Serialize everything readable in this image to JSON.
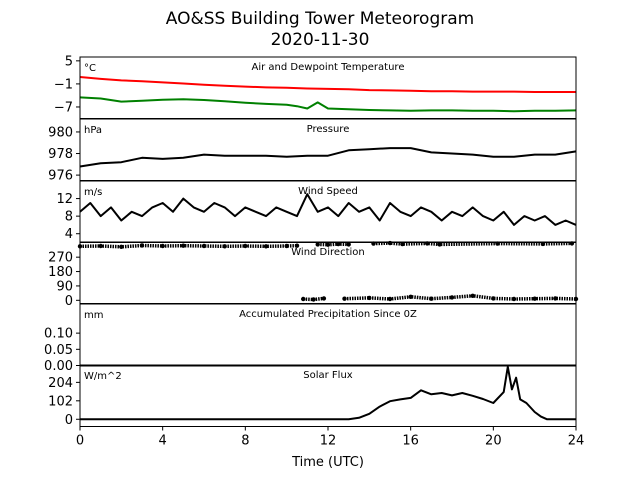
{
  "figure": {
    "title_line1": "AO&SS Building Tower Meteorogram",
    "title_line2": "2020-11-30",
    "xlabel": "Time (UTC)",
    "x_ticks": [
      "0",
      "4",
      "8",
      "12",
      "16",
      "20",
      "24"
    ],
    "xlim": [
      0,
      24
    ]
  },
  "chart_data": [
    {
      "type": "line",
      "title": "Air and Dewpoint Temperature",
      "unit": "°C",
      "ylim": [
        -10,
        6
      ],
      "y_ticks": [
        "5",
        "−1",
        "−7"
      ],
      "y_tick_values": [
        5,
        -1,
        -7
      ],
      "series": [
        {
          "color": "#ff0000",
          "x": [
            0,
            1,
            2,
            3,
            4,
            5,
            6,
            7,
            8,
            9,
            10,
            11,
            12,
            13,
            14,
            15,
            16,
            17,
            18,
            19,
            20,
            21,
            22,
            23,
            24
          ],
          "values": [
            0.8,
            0.3,
            -0.1,
            -0.3,
            -0.6,
            -0.9,
            -1.2,
            -1.5,
            -1.7,
            -1.9,
            -2.0,
            -2.2,
            -2.3,
            -2.4,
            -2.6,
            -2.7,
            -2.8,
            -2.9,
            -2.9,
            -3.0,
            -3.0,
            -3.0,
            -3.1,
            -3.1,
            -3.1
          ]
        },
        {
          "color": "#008000",
          "x": [
            0,
            1,
            2,
            3,
            4,
            5,
            6,
            7,
            8,
            9,
            10,
            10.5,
            11,
            11.5,
            12,
            13,
            14,
            15,
            16,
            17,
            18,
            19,
            20,
            21,
            22,
            23,
            24
          ],
          "values": [
            -4.5,
            -4.8,
            -5.6,
            -5.4,
            -5.1,
            -5.0,
            -5.2,
            -5.5,
            -5.9,
            -6.2,
            -6.4,
            -6.8,
            -7.4,
            -5.8,
            -7.4,
            -7.6,
            -7.8,
            -7.9,
            -8.0,
            -7.9,
            -7.9,
            -8.0,
            -8.0,
            -8.1,
            -8.0,
            -8.0,
            -7.9
          ]
        }
      ]
    },
    {
      "type": "line",
      "title": "Pressure",
      "unit": "hPa",
      "ylim": [
        975.5,
        981.2
      ],
      "y_ticks": [
        "980",
        "978",
        "976"
      ],
      "y_tick_values": [
        980,
        978,
        976
      ],
      "series": [
        {
          "color": "#000000",
          "x": [
            0,
            1,
            2,
            3,
            4,
            5,
            6,
            7,
            8,
            9,
            10,
            11,
            12,
            13,
            14,
            15,
            16,
            17,
            18,
            19,
            20,
            21,
            22,
            23,
            24
          ],
          "values": [
            976.8,
            977.1,
            977.2,
            977.6,
            977.5,
            977.6,
            977.9,
            977.8,
            977.8,
            977.8,
            977.7,
            977.8,
            977.8,
            978.3,
            978.4,
            978.5,
            978.5,
            978.1,
            978.0,
            977.9,
            977.7,
            977.7,
            977.9,
            977.9,
            978.2
          ]
        }
      ]
    },
    {
      "type": "line",
      "title": "Wind Speed",
      "unit": "m/s",
      "ylim": [
        2,
        16
      ],
      "y_ticks": [
        "12",
        "8",
        "4"
      ],
      "y_tick_values": [
        12,
        8,
        4
      ],
      "series": [
        {
          "color": "#000000",
          "x": [
            0,
            0.5,
            1,
            1.5,
            2,
            2.5,
            3,
            3.5,
            4,
            4.5,
            5,
            5.5,
            6,
            6.5,
            7,
            7.5,
            8,
            8.5,
            9,
            9.5,
            10,
            10.5,
            11,
            11.5,
            12,
            12.5,
            13,
            13.5,
            14,
            14.5,
            15,
            15.5,
            16,
            16.5,
            17,
            17.5,
            18,
            18.5,
            19,
            19.5,
            20,
            20.5,
            21,
            21.5,
            22,
            22.5,
            23,
            23.5,
            24
          ],
          "values": [
            9,
            11,
            8,
            10,
            7,
            9,
            8,
            10,
            11,
            9,
            12,
            10,
            9,
            11,
            10,
            8,
            10,
            9,
            8,
            10,
            9,
            8,
            13,
            9,
            10,
            8,
            11,
            9,
            10,
            7,
            11,
            9,
            8,
            10,
            9,
            7,
            9,
            8,
            10,
            8,
            7,
            9,
            6,
            8,
            7,
            8,
            6,
            7,
            6
          ]
        }
      ]
    },
    {
      "type": "scatter",
      "title": "Wind Direction",
      "unit": "",
      "ylim": [
        -20,
        365
      ],
      "y_ticks": [
        "270",
        "180",
        "90",
        "0"
      ],
      "y_tick_values": [
        270,
        180,
        90,
        0
      ],
      "series": [
        {
          "color": "#000000",
          "segments": [
            {
              "x": [
                0,
                1,
                2,
                3,
                4,
                5,
                6,
                7,
                8,
                9,
                10,
                10.5
              ],
              "values": [
                338,
                340,
                335,
                343,
                340,
                342,
                340,
                338,
                340,
                338,
                340,
                342
              ]
            },
            {
              "x": [
                11.5,
                12,
                12.5,
                13
              ],
              "values": [
                350,
                348,
                352,
                350
              ]
            },
            {
              "x": [
                14.2,
                15.0,
                15.6,
                16.8,
                17.4,
                20.2,
                22.4,
                23.8
              ],
              "values": [
                355,
                358,
                352,
                356,
                350,
                355,
                353,
                356
              ]
            },
            {
              "x": [
                10.8,
                11.3,
                11.8
              ],
              "values": [
                8,
                5,
                12
              ]
            },
            {
              "x": [
                12.8,
                14,
                15,
                16,
                17,
                18,
                19,
                20,
                21,
                22,
                23,
                24
              ],
              "values": [
                10,
                15,
                8,
                22,
                10,
                18,
                28,
                12,
                8,
                10,
                12,
                8
              ]
            }
          ]
        }
      ]
    },
    {
      "type": "line",
      "title": "Accumulated Precipitation Since 0Z",
      "unit": "mm",
      "ylim": [
        0,
        0.19
      ],
      "y_ticks": [
        "0.10",
        "0.05",
        "0.00"
      ],
      "y_tick_values": [
        0.1,
        0.05,
        0.0
      ],
      "series": [
        {
          "color": "#000000",
          "x": [
            0,
            24
          ],
          "values": [
            0,
            0
          ]
        }
      ]
    },
    {
      "type": "line",
      "title": "Solar Flux",
      "unit": "W/m^2",
      "ylim": [
        -40,
        300
      ],
      "y_ticks": [
        "204",
        "102",
        "0"
      ],
      "y_tick_values": [
        204,
        102,
        0
      ],
      "series": [
        {
          "color": "#000000",
          "x": [
            0,
            13.0,
            13.5,
            14.0,
            14.5,
            15.0,
            15.5,
            16.0,
            16.5,
            17.0,
            17.5,
            18.0,
            18.5,
            19.0,
            19.5,
            20.0,
            20.5,
            20.7,
            20.9,
            21.1,
            21.3,
            21.6,
            22.0,
            22.3,
            22.6,
            24
          ],
          "values": [
            0,
            0,
            8,
            30,
            70,
            100,
            110,
            118,
            160,
            138,
            145,
            132,
            145,
            130,
            112,
            90,
            150,
            290,
            165,
            230,
            110,
            90,
            40,
            15,
            0,
            0
          ]
        }
      ]
    }
  ]
}
